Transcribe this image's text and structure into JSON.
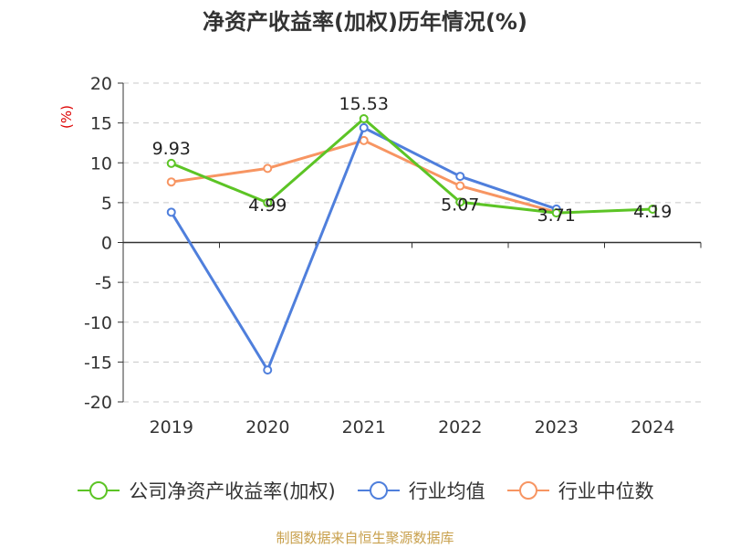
{
  "title": "净资产收益率(加权)历年情况(%)",
  "source": "制图数据来自恒生聚源数据库",
  "chart_data": {
    "type": "line",
    "title": "净资产收益率(加权)历年情况(%)",
    "y_unit_label": "(%)",
    "categories": [
      "2019",
      "2020",
      "2021",
      "2022",
      "2023",
      "2024"
    ],
    "ylim": [
      -20,
      20
    ],
    "yticks": [
      -20,
      -15,
      -10,
      -5,
      0,
      5,
      10,
      15,
      20
    ],
    "ytick_labels": [
      "-20",
      "-15",
      "-10",
      "-5",
      "0",
      "5",
      "10",
      "15",
      "20"
    ],
    "grid": true,
    "legend_position": "bottom",
    "series": [
      {
        "name": "公司净资产收益率(加权)",
        "color": "#5cc425",
        "values": [
          9.93,
          4.99,
          15.53,
          5.07,
          3.71,
          4.19
        ],
        "data_labels": [
          "9.93",
          "4.99",
          "15.53",
          "5.07",
          "3.71",
          "4.19"
        ]
      },
      {
        "name": "行业均值",
        "color": "#4f7fdc",
        "values": [
          3.8,
          -16.0,
          14.4,
          8.3,
          4.2,
          null
        ],
        "data_labels": []
      },
      {
        "name": "行业中位数",
        "color": "#f79562",
        "values": [
          7.6,
          9.3,
          12.8,
          7.1,
          3.8,
          null
        ],
        "data_labels": []
      }
    ]
  }
}
